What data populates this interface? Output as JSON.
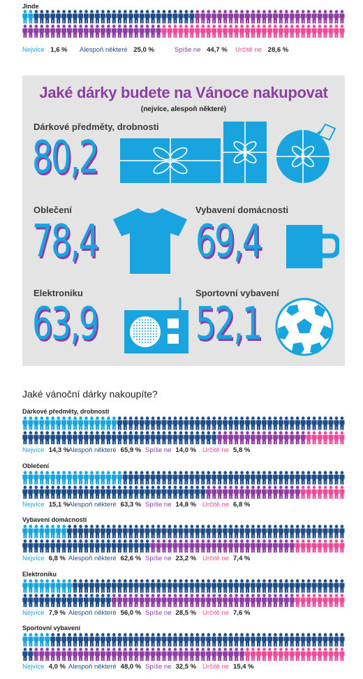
{
  "top_section": {
    "title": "Jinde",
    "legend": [
      {
        "label": "Nejvíce",
        "value": "1,6 %"
      },
      {
        "label": "Alespoň některé",
        "value": "25,0 %"
      },
      {
        "label": "Spíše ne",
        "value": "44,7 %"
      },
      {
        "label": "Určitě ne",
        "value": "28,6 %"
      }
    ]
  },
  "panel": {
    "title": "Jaké dárky budete na Vánoce nakupovat",
    "subtitle": "(nejvíce, alespoň některé)",
    "items": [
      {
        "label": "Dárkové předměty, drobnosti",
        "value": "80,2",
        "icons": [
          "gift-box-icon",
          "gift-package-icon",
          "christmas-ornament-icon"
        ]
      },
      {
        "label": "Oblečení",
        "value": "78,4",
        "icons": [
          "t-shirt-icon"
        ]
      },
      {
        "label": "Vybavení domácnosti",
        "value": "69,4",
        "icons": [
          "mug-icon"
        ]
      },
      {
        "label": "Elektroniku",
        "value": "63,9",
        "icons": [
          "radio-icon"
        ]
      },
      {
        "label": "Sportovní vybavení",
        "value": "52,1",
        "icons": [
          "soccer-ball-icon"
        ]
      }
    ]
  },
  "subheading": "Jaké vánoční dárky nakoupíte?",
  "colors": {
    "nejvice": "#19a4e0",
    "alespon": "#1f4d89",
    "spise_ne": "#8e3da3",
    "urcite_ne": "#ea4d98",
    "panel_bg": "#e4e4e4"
  },
  "chart_data": [
    {
      "type": "table",
      "title": "Jinde",
      "series": [
        {
          "name": "Nejvíce",
          "value": 1.6
        },
        {
          "name": "Alespoň některé",
          "value": 25.0
        },
        {
          "name": "Spíše ne",
          "value": 44.7
        },
        {
          "name": "Určitě ne",
          "value": 28.6
        }
      ]
    },
    {
      "type": "bar",
      "title": "Jaké dárky budete na Vánoce nakupovat",
      "subtitle": "(nejvíce, alespoň některé)",
      "categories": [
        "Dárkové předměty, drobnosti",
        "Oblečení",
        "Vybavení domácnosti",
        "Elektroniku",
        "Sportovní vybavení"
      ],
      "values": [
        80.2,
        78.4,
        69.4,
        63.9,
        52.1
      ]
    },
    {
      "type": "table",
      "title": "Jaké vánoční dárky nakoupíte?",
      "rows": [
        {
          "category": "Dárkové předměty, drobnosti",
          "values": [
            14.3,
            65.9,
            14.0,
            5.8
          ],
          "labels": [
            "14,3 %",
            "65,9 %",
            "14,0 %",
            "5,8 %"
          ]
        },
        {
          "category": "Oblečení",
          "values": [
            15.1,
            63.3,
            14.8,
            6.8
          ],
          "labels": [
            "15,1 %",
            "63,3 %",
            "14,8 %",
            "6,8 %"
          ]
        },
        {
          "category": "Vybavení domácnosti",
          "values": [
            6.8,
            62.6,
            23.2,
            7.4
          ],
          "labels": [
            "6,8 %",
            "62,6 %",
            "23,2 %",
            "7,4 %"
          ]
        },
        {
          "category": "Elektroniku",
          "values": [
            7.9,
            56.0,
            28.5,
            7.6
          ],
          "labels": [
            "7,9 %",
            "56,0 %",
            "28,5 %",
            "7,6 %"
          ]
        },
        {
          "category": "Sportovní vybavení",
          "values": [
            4.0,
            48.0,
            32.5,
            15.4
          ],
          "labels": [
            "4,0 %",
            "48,0 %",
            "32,5 %",
            "15,4 %"
          ]
        }
      ],
      "legend": [
        "Nejvíce",
        "Alespoň některé",
        "Spíše ne",
        "Určitě ne"
      ]
    }
  ]
}
